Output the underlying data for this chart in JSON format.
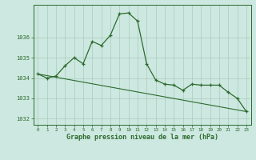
{
  "hours": [
    0,
    1,
    2,
    3,
    4,
    5,
    6,
    7,
    8,
    9,
    10,
    11,
    12,
    13,
    14,
    15,
    16,
    17,
    18,
    19,
    20,
    21,
    22,
    23
  ],
  "series1": [
    1034.2,
    1034.0,
    1034.1,
    1034.6,
    1035.0,
    1034.7,
    1035.8,
    1035.6,
    1036.1,
    1037.15,
    1037.2,
    1036.8,
    1034.7,
    1033.9,
    1033.7,
    1033.65,
    1033.4,
    1033.7,
    1033.65,
    1033.65,
    1033.65,
    1033.3,
    1033.0,
    1032.35
  ],
  "line_color": "#2d6a2d",
  "bg_color": "#cce8e0",
  "grid_color": "#aaccbb",
  "xlabel": "Graphe pression niveau de la mer (hPa)",
  "ylim": [
    1031.7,
    1037.6
  ],
  "xlim": [
    -0.5,
    23.5
  ],
  "yticks": [
    1032,
    1033,
    1034,
    1035,
    1036
  ],
  "xtick_labels": [
    "0",
    "1",
    "2",
    "3",
    "4",
    "5",
    "6",
    "7",
    "8",
    "9",
    "10",
    "11",
    "12",
    "13",
    "14",
    "15",
    "16",
    "17",
    "18",
    "19",
    "20",
    "21",
    "22",
    "23"
  ]
}
